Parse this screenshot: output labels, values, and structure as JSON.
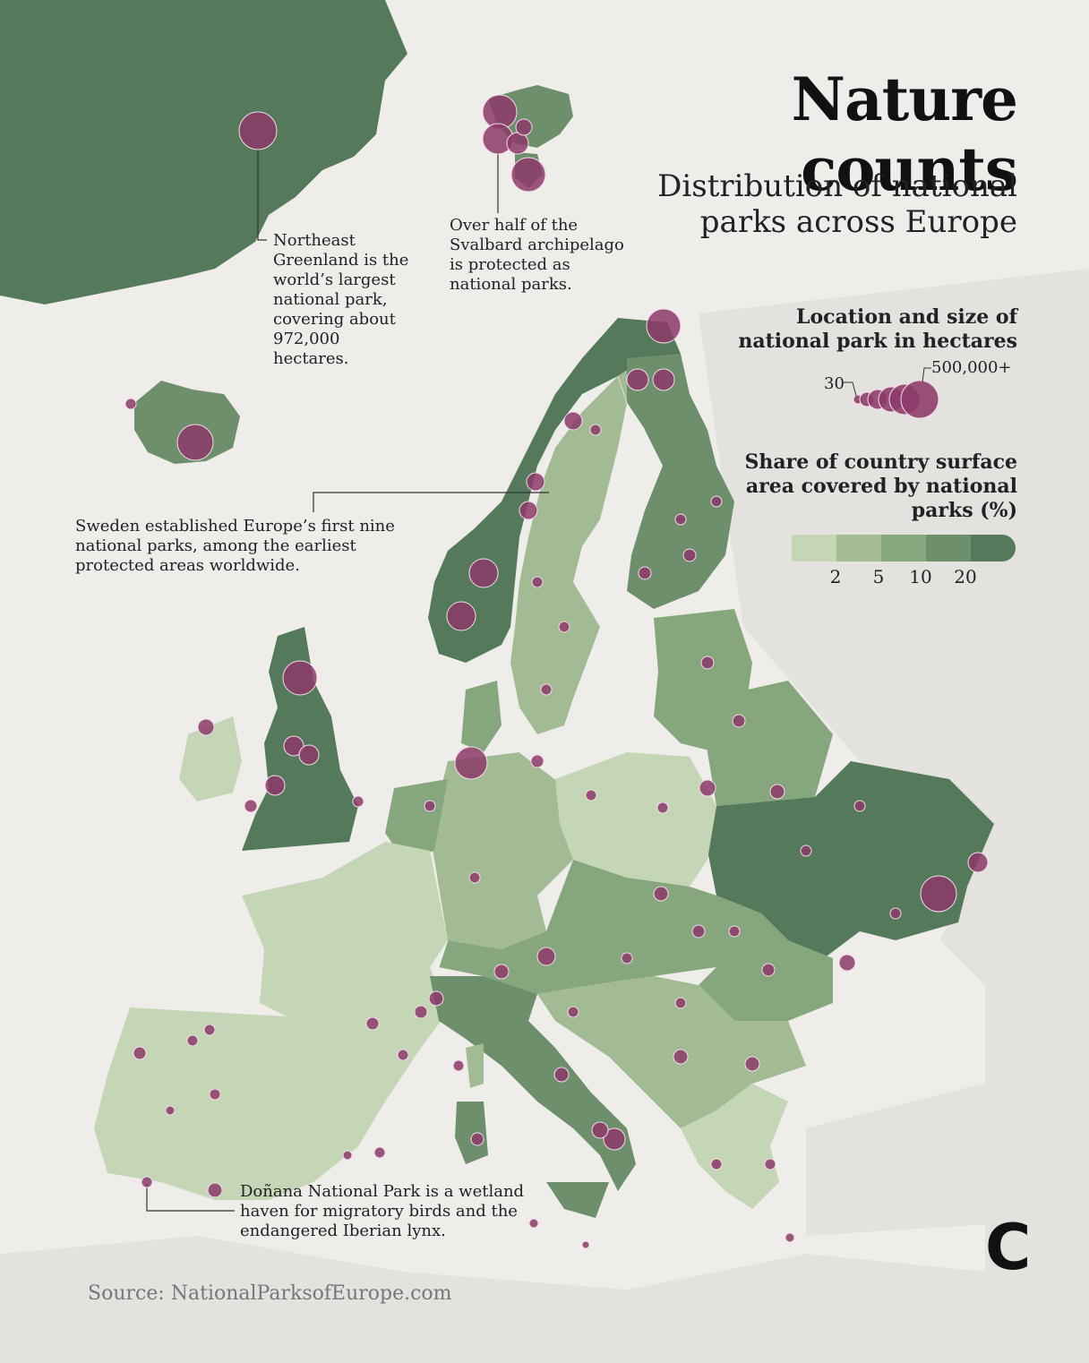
{
  "title": "Nature counts",
  "subtitle": "Distribution of national parks across Europe",
  "legend": {
    "size_heading": "Location and size of national park in hectares",
    "size_min_label": "30",
    "size_max_label": "500,000+",
    "share_heading": "Share of country surface area covered by national parks (%)",
    "share_ticks": [
      "2",
      "5",
      "10",
      "20"
    ],
    "share_colors": [
      "#c4d6b5",
      "#a2bb95",
      "#86a67e",
      "#6d8f6c",
      "#557a5b"
    ]
  },
  "annotations": {
    "greenland": "Northeast Greenland is the world’s largest national park, covering about 972,000 hectares.",
    "svalbard": "Over half of the Svalbard archipelago is protected as national parks.",
    "sweden": "Sweden established Europe’s first nine national parks, among the earliest protected areas worldwide.",
    "donana": "Doñana National Park is a wetland haven for migratory birds and the endangered Iberian lynx."
  },
  "source": "Source: NationalParksofEurope.com",
  "logo": "C",
  "colors": {
    "park": "#8c3a6a",
    "park_stroke": "#f2dce8",
    "land_outside": "#e4e2de",
    "sea": "#efedea",
    "high": "#557a5b",
    "midhigh": "#6d8f6c",
    "mid": "#86a67e",
    "midlow": "#a2bb95",
    "low": "#c4d6b5"
  }
}
